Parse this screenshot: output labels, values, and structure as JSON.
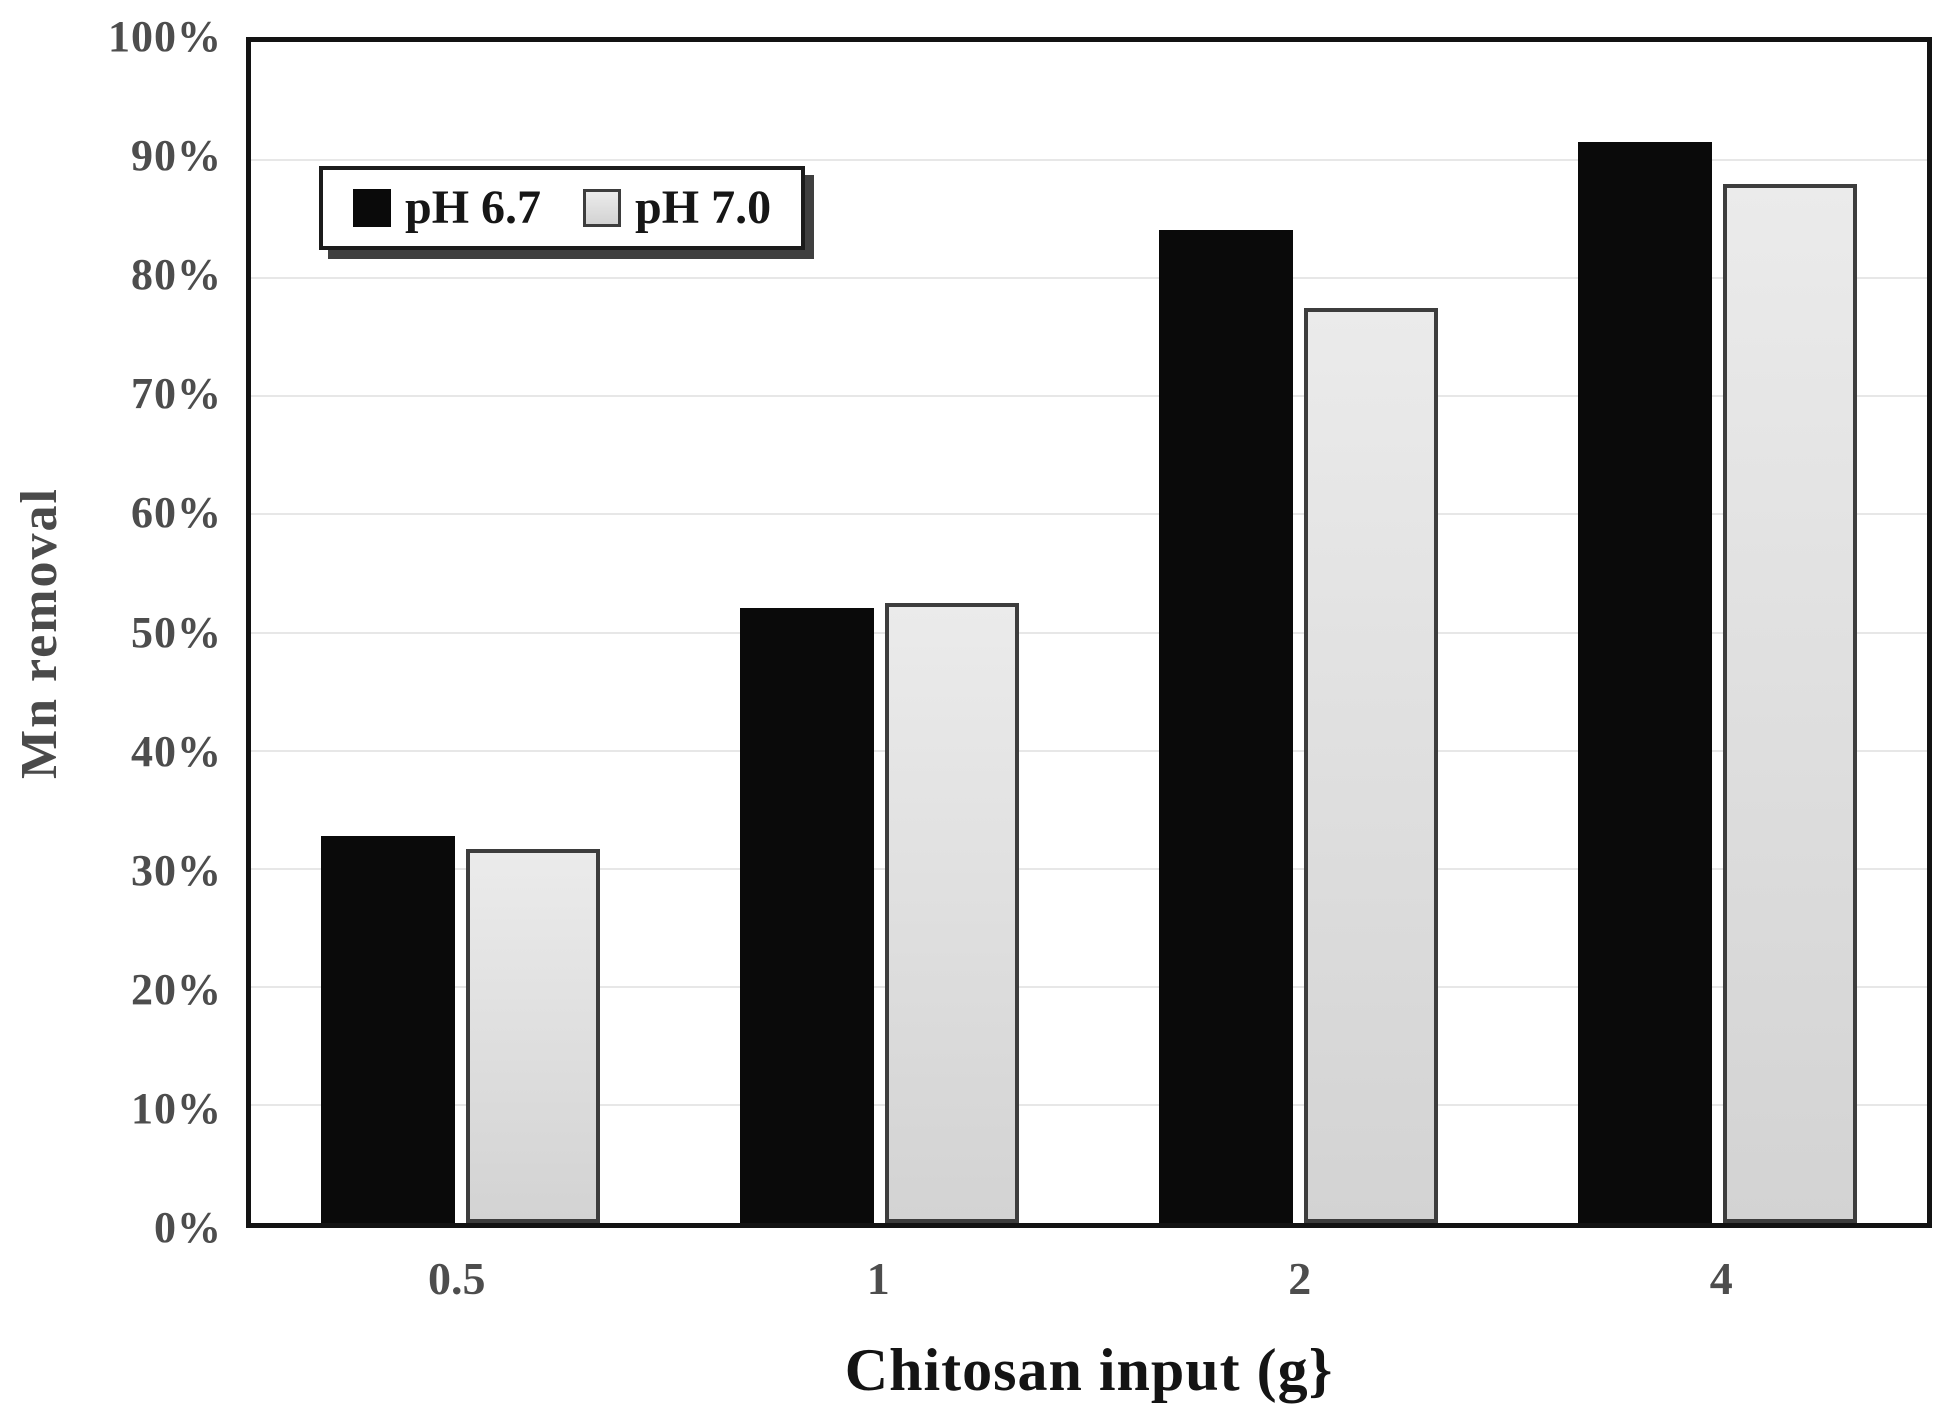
{
  "chart_data": {
    "type": "bar",
    "title": "",
    "xlabel": "Chitosan input (g}",
    "ylabel": "Mn removal",
    "categories": [
      "0.5",
      "1",
      "2",
      "4"
    ],
    "series": [
      {
        "name": "pH 6.7",
        "values": [
          32.8,
          52.1,
          84.1,
          91.5
        ],
        "fill_top": "#0a0a0a",
        "fill_bottom": "#0a0a0a",
        "border": "none"
      },
      {
        "name": "pH 7.0",
        "values": [
          31.7,
          52.5,
          77.5,
          88.0
        ],
        "fill_top": "#ebebeb",
        "fill_bottom": "#d3d3d3",
        "border": "#3d3d3d"
      }
    ],
    "ylim": [
      0,
      100
    ],
    "y_tick_step": 10,
    "y_ticks": [
      "0%",
      "10%",
      "20%",
      "30%",
      "40%",
      "50%",
      "60%",
      "70%",
      "80%",
      "90%",
      "100%"
    ],
    "grid": true,
    "legend_position": "top-left-inside"
  },
  "colors": {
    "plot_border": "#131313",
    "gridline": "#e7e7e7",
    "tick_label": "#4d4d4d",
    "y_axis_title": "#4a4a4a",
    "x_axis_title": "#141414",
    "background": "#ffffff",
    "legend_shadow": "#3f3f3f"
  }
}
